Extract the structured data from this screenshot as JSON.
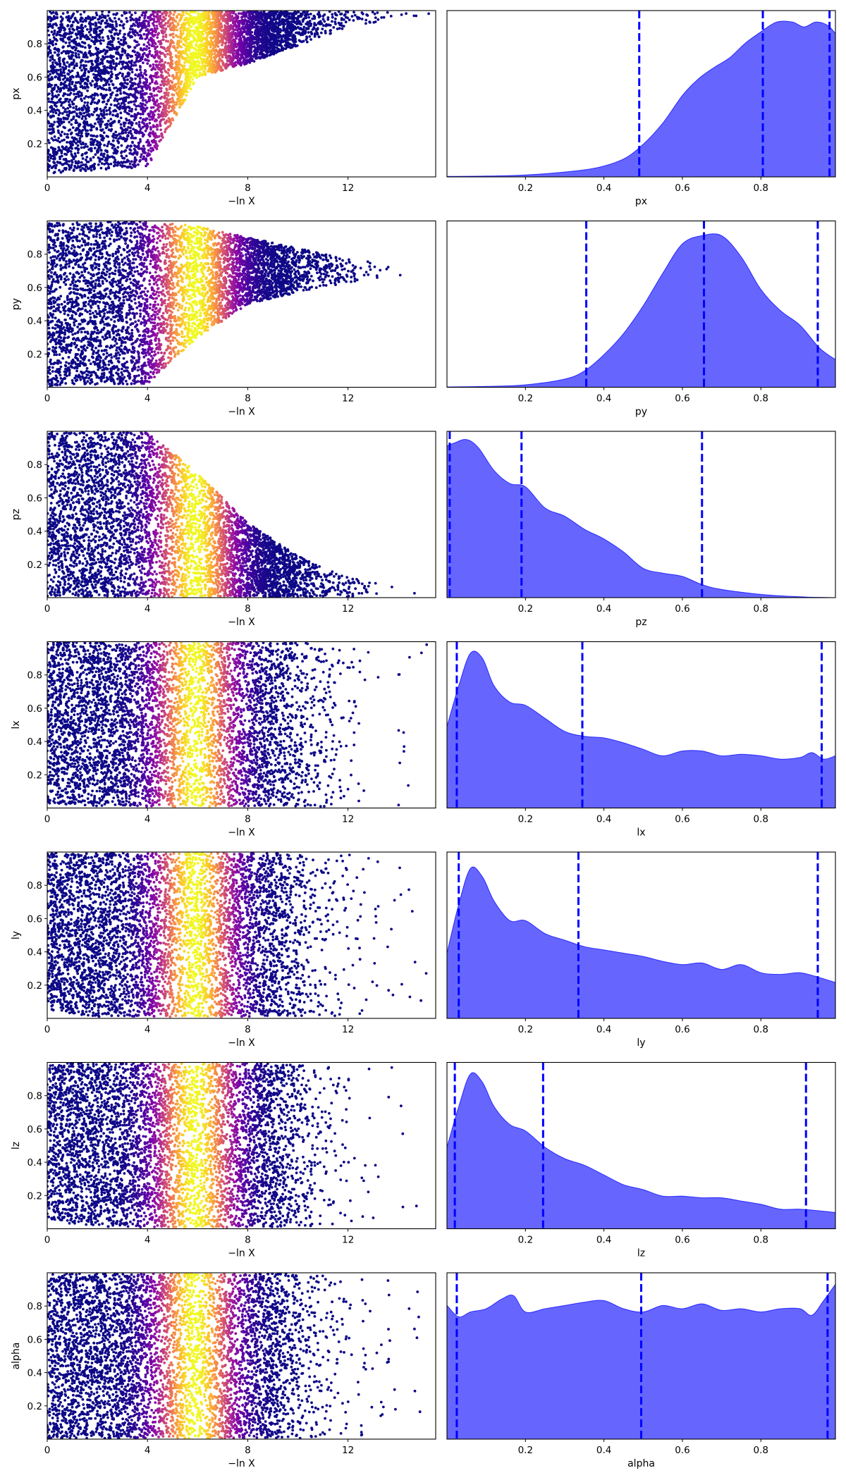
{
  "figure": {
    "background": "#ffffff",
    "xlabel_trace": "−ln X",
    "trace_xticks": [
      "0",
      "4",
      "8",
      "12"
    ],
    "trace_yticks": [
      "0.2",
      "0.4",
      "0.6",
      "0.8"
    ],
    "trace_colormap": "plasma",
    "kde_fill_color": "#0000ff",
    "kde_fill_alpha": 0.6,
    "quantile_line_color": "#0000ff",
    "quantile_line_style": "dashed"
  },
  "chart_data": [
    {
      "type": "scatter",
      "param": "px",
      "ylabel": "px",
      "xlabel": "−ln X",
      "xlim": [
        0,
        15.5
      ],
      "ylim": [
        0,
        1
      ],
      "trace_shape": {
        "floor": [
          [
            0,
            0.02
          ],
          [
            4,
            0.06
          ],
          [
            6,
            0.6
          ],
          [
            8,
            0.68
          ],
          [
            12,
            0.9
          ],
          [
            15,
            0.97
          ]
        ],
        "x_end": 15.3,
        "ceil": 0.995
      }
    },
    {
      "type": "area",
      "param": "px",
      "xlabel": "px",
      "xlim": [
        0.0,
        0.99
      ],
      "xticks": [
        0.2,
        0.4,
        0.6,
        0.8
      ],
      "quantiles": [
        0.49,
        0.805,
        0.975
      ],
      "density": [
        [
          0.0,
          0.003
        ],
        [
          0.1,
          0.005
        ],
        [
          0.2,
          0.012
        ],
        [
          0.3,
          0.03
        ],
        [
          0.38,
          0.055
        ],
        [
          0.45,
          0.11
        ],
        [
          0.5,
          0.2
        ],
        [
          0.55,
          0.33
        ],
        [
          0.6,
          0.5
        ],
        [
          0.64,
          0.6
        ],
        [
          0.68,
          0.67
        ],
        [
          0.72,
          0.73
        ],
        [
          0.76,
          0.82
        ],
        [
          0.8,
          0.89
        ],
        [
          0.84,
          0.95
        ],
        [
          0.88,
          0.95
        ],
        [
          0.91,
          0.92
        ],
        [
          0.94,
          0.95
        ],
        [
          0.97,
          0.93
        ],
        [
          0.99,
          0.88
        ]
      ]
    },
    {
      "type": "scatter",
      "param": "py",
      "ylabel": "py",
      "xlabel": "−ln X",
      "xlim": [
        0,
        15.5
      ],
      "ylim": [
        0,
        1
      ],
      "trace_shape": {
        "floor": [
          [
            0,
            0.005
          ],
          [
            4,
            0.02
          ],
          [
            6,
            0.3
          ],
          [
            8,
            0.5
          ],
          [
            10,
            0.57
          ],
          [
            12,
            0.63
          ],
          [
            14.5,
            0.67
          ]
        ],
        "ceil_shape": [
          [
            0,
            0.995
          ],
          [
            4,
            0.995
          ],
          [
            6,
            0.97
          ],
          [
            8,
            0.9
          ],
          [
            10,
            0.84
          ],
          [
            12,
            0.77
          ],
          [
            14.5,
            0.73
          ]
        ],
        "x_end": 15.3
      }
    },
    {
      "type": "area",
      "param": "py",
      "xlabel": "py",
      "xlim": [
        0.0,
        0.99
      ],
      "xticks": [
        0.2,
        0.4,
        0.6,
        0.8
      ],
      "quantiles": [
        0.355,
        0.655,
        0.945
      ],
      "density": [
        [
          0.0,
          0.002
        ],
        [
          0.1,
          0.005
        ],
        [
          0.2,
          0.015
        ],
        [
          0.3,
          0.05
        ],
        [
          0.35,
          0.1
        ],
        [
          0.4,
          0.2
        ],
        [
          0.45,
          0.33
        ],
        [
          0.5,
          0.5
        ],
        [
          0.55,
          0.7
        ],
        [
          0.6,
          0.88
        ],
        [
          0.65,
          0.93
        ],
        [
          0.7,
          0.93
        ],
        [
          0.75,
          0.8
        ],
        [
          0.8,
          0.6
        ],
        [
          0.85,
          0.47
        ],
        [
          0.9,
          0.38
        ],
        [
          0.95,
          0.24
        ],
        [
          0.99,
          0.17
        ]
      ]
    },
    {
      "type": "scatter",
      "param": "pz",
      "ylabel": "pz",
      "xlabel": "−ln X",
      "xlim": [
        0,
        15.5
      ],
      "ylim": [
        0,
        1
      ],
      "trace_shape": {
        "floor": [
          [
            0,
            0.005
          ],
          [
            15,
            0.005
          ]
        ],
        "ceil_shape": [
          [
            0,
            0.995
          ],
          [
            4,
            0.995
          ],
          [
            6,
            0.75
          ],
          [
            8,
            0.45
          ],
          [
            10,
            0.25
          ],
          [
            12,
            0.12
          ],
          [
            15,
            0.06
          ]
        ],
        "x_end": 15.3
      }
    },
    {
      "type": "area",
      "param": "pz",
      "xlabel": "pz",
      "xlim": [
        0.0,
        0.99
      ],
      "xticks": [
        0.2,
        0.4,
        0.6,
        0.8
      ],
      "quantiles": [
        0.007,
        0.19,
        0.65
      ],
      "density": [
        [
          0.0,
          0.93
        ],
        [
          0.02,
          0.95
        ],
        [
          0.05,
          0.97
        ],
        [
          0.08,
          0.92
        ],
        [
          0.12,
          0.78
        ],
        [
          0.16,
          0.7
        ],
        [
          0.2,
          0.68
        ],
        [
          0.25,
          0.55
        ],
        [
          0.3,
          0.5
        ],
        [
          0.35,
          0.42
        ],
        [
          0.4,
          0.36
        ],
        [
          0.45,
          0.28
        ],
        [
          0.5,
          0.18
        ],
        [
          0.55,
          0.15
        ],
        [
          0.6,
          0.13
        ],
        [
          0.65,
          0.08
        ],
        [
          0.7,
          0.05
        ],
        [
          0.8,
          0.02
        ],
        [
          0.9,
          0.005
        ],
        [
          0.99,
          0.0
        ]
      ]
    },
    {
      "type": "scatter",
      "param": "lx",
      "ylabel": "lx",
      "xlabel": "−ln X",
      "xlim": [
        0,
        15.5
      ],
      "ylim": [
        0,
        1
      ],
      "trace_shape": {
        "floor": [
          [
            0,
            0.03
          ],
          [
            2,
            0.01
          ],
          [
            15,
            0.01
          ]
        ],
        "x_end": 15.3,
        "ceil": 0.995
      }
    },
    {
      "type": "area",
      "param": "lx",
      "xlabel": "lx",
      "xlim": [
        0.0,
        0.99
      ],
      "xticks": [
        0.2,
        0.4,
        0.6,
        0.8
      ],
      "quantiles": [
        0.025,
        0.345,
        0.955
      ],
      "density": [
        [
          0.0,
          0.5
        ],
        [
          0.03,
          0.75
        ],
        [
          0.06,
          0.95
        ],
        [
          0.09,
          0.92
        ],
        [
          0.12,
          0.75
        ],
        [
          0.16,
          0.65
        ],
        [
          0.2,
          0.63
        ],
        [
          0.25,
          0.55
        ],
        [
          0.3,
          0.47
        ],
        [
          0.35,
          0.44
        ],
        [
          0.4,
          0.43
        ],
        [
          0.45,
          0.4
        ],
        [
          0.5,
          0.36
        ],
        [
          0.55,
          0.32
        ],
        [
          0.6,
          0.35
        ],
        [
          0.65,
          0.35
        ],
        [
          0.7,
          0.32
        ],
        [
          0.75,
          0.33
        ],
        [
          0.8,
          0.32
        ],
        [
          0.85,
          0.3
        ],
        [
          0.9,
          0.31
        ],
        [
          0.93,
          0.34
        ],
        [
          0.96,
          0.3
        ],
        [
          0.99,
          0.32
        ]
      ]
    },
    {
      "type": "scatter",
      "param": "ly",
      "ylabel": "ly",
      "xlabel": "−ln X",
      "xlim": [
        0,
        15.5
      ],
      "ylim": [
        0,
        1
      ],
      "trace_shape": {
        "floor": [
          [
            0,
            0.05
          ],
          [
            2,
            0.01
          ],
          [
            15,
            0.01
          ]
        ],
        "x_end": 15.3,
        "ceil": 0.995
      }
    },
    {
      "type": "area",
      "param": "ly",
      "xlabel": "ly",
      "xlim": [
        0.0,
        0.99
      ],
      "xticks": [
        0.2,
        0.4,
        0.6,
        0.8
      ],
      "quantiles": [
        0.03,
        0.335,
        0.945
      ],
      "density": [
        [
          0.0,
          0.4
        ],
        [
          0.03,
          0.7
        ],
        [
          0.06,
          0.92
        ],
        [
          0.09,
          0.87
        ],
        [
          0.12,
          0.72
        ],
        [
          0.16,
          0.6
        ],
        [
          0.2,
          0.6
        ],
        [
          0.25,
          0.52
        ],
        [
          0.3,
          0.48
        ],
        [
          0.35,
          0.44
        ],
        [
          0.4,
          0.42
        ],
        [
          0.45,
          0.4
        ],
        [
          0.5,
          0.38
        ],
        [
          0.55,
          0.35
        ],
        [
          0.6,
          0.33
        ],
        [
          0.65,
          0.34
        ],
        [
          0.7,
          0.3
        ],
        [
          0.75,
          0.33
        ],
        [
          0.8,
          0.28
        ],
        [
          0.85,
          0.27
        ],
        [
          0.9,
          0.28
        ],
        [
          0.95,
          0.25
        ],
        [
          0.99,
          0.22
        ]
      ]
    },
    {
      "type": "scatter",
      "param": "lz",
      "ylabel": "lz",
      "xlabel": "−ln X",
      "xlim": [
        0,
        15.5
      ],
      "ylim": [
        0,
        1
      ],
      "trace_shape": {
        "floor": [
          [
            0,
            0.05
          ],
          [
            2,
            0.01
          ],
          [
            15,
            0.01
          ]
        ],
        "x_end": 15.3,
        "ceil": 0.995
      }
    },
    {
      "type": "area",
      "param": "lz",
      "xlabel": "lz",
      "xlim": [
        0.0,
        0.99
      ],
      "xticks": [
        0.2,
        0.4,
        0.6,
        0.8
      ],
      "quantiles": [
        0.02,
        0.245,
        0.915
      ],
      "density": [
        [
          0.0,
          0.5
        ],
        [
          0.03,
          0.75
        ],
        [
          0.06,
          0.95
        ],
        [
          0.09,
          0.9
        ],
        [
          0.12,
          0.75
        ],
        [
          0.16,
          0.64
        ],
        [
          0.2,
          0.6
        ],
        [
          0.25,
          0.5
        ],
        [
          0.3,
          0.43
        ],
        [
          0.35,
          0.39
        ],
        [
          0.4,
          0.33
        ],
        [
          0.45,
          0.27
        ],
        [
          0.5,
          0.24
        ],
        [
          0.55,
          0.2
        ],
        [
          0.6,
          0.2
        ],
        [
          0.65,
          0.19
        ],
        [
          0.7,
          0.19
        ],
        [
          0.75,
          0.17
        ],
        [
          0.8,
          0.15
        ],
        [
          0.85,
          0.12
        ],
        [
          0.9,
          0.12
        ],
        [
          0.95,
          0.11
        ],
        [
          0.99,
          0.1
        ]
      ]
    },
    {
      "type": "scatter",
      "param": "alpha",
      "ylabel": "alpha",
      "xlabel": "−ln X",
      "xlim": [
        0,
        15.5
      ],
      "ylim": [
        0,
        1
      ],
      "trace_shape": {
        "floor": [
          [
            0,
            0.005
          ],
          [
            15,
            0.005
          ]
        ],
        "x_end": 15.3,
        "ceil": 0.995
      }
    },
    {
      "type": "area",
      "param": "alpha",
      "xlabel": "alpha",
      "xlim": [
        0.0,
        0.99
      ],
      "xticks": [
        0.2,
        0.4,
        0.6,
        0.8
      ],
      "quantiles": [
        0.025,
        0.495,
        0.97
      ],
      "density": [
        [
          0.0,
          0.82
        ],
        [
          0.03,
          0.75
        ],
        [
          0.06,
          0.78
        ],
        [
          0.1,
          0.8
        ],
        [
          0.14,
          0.86
        ],
        [
          0.17,
          0.88
        ],
        [
          0.2,
          0.78
        ],
        [
          0.25,
          0.8
        ],
        [
          0.3,
          0.82
        ],
        [
          0.35,
          0.84
        ],
        [
          0.4,
          0.85
        ],
        [
          0.45,
          0.8
        ],
        [
          0.5,
          0.78
        ],
        [
          0.55,
          0.82
        ],
        [
          0.6,
          0.8
        ],
        [
          0.65,
          0.83
        ],
        [
          0.7,
          0.79
        ],
        [
          0.75,
          0.8
        ],
        [
          0.8,
          0.78
        ],
        [
          0.85,
          0.8
        ],
        [
          0.9,
          0.8
        ],
        [
          0.93,
          0.76
        ],
        [
          0.96,
          0.85
        ],
        [
          0.99,
          0.95
        ]
      ]
    }
  ]
}
